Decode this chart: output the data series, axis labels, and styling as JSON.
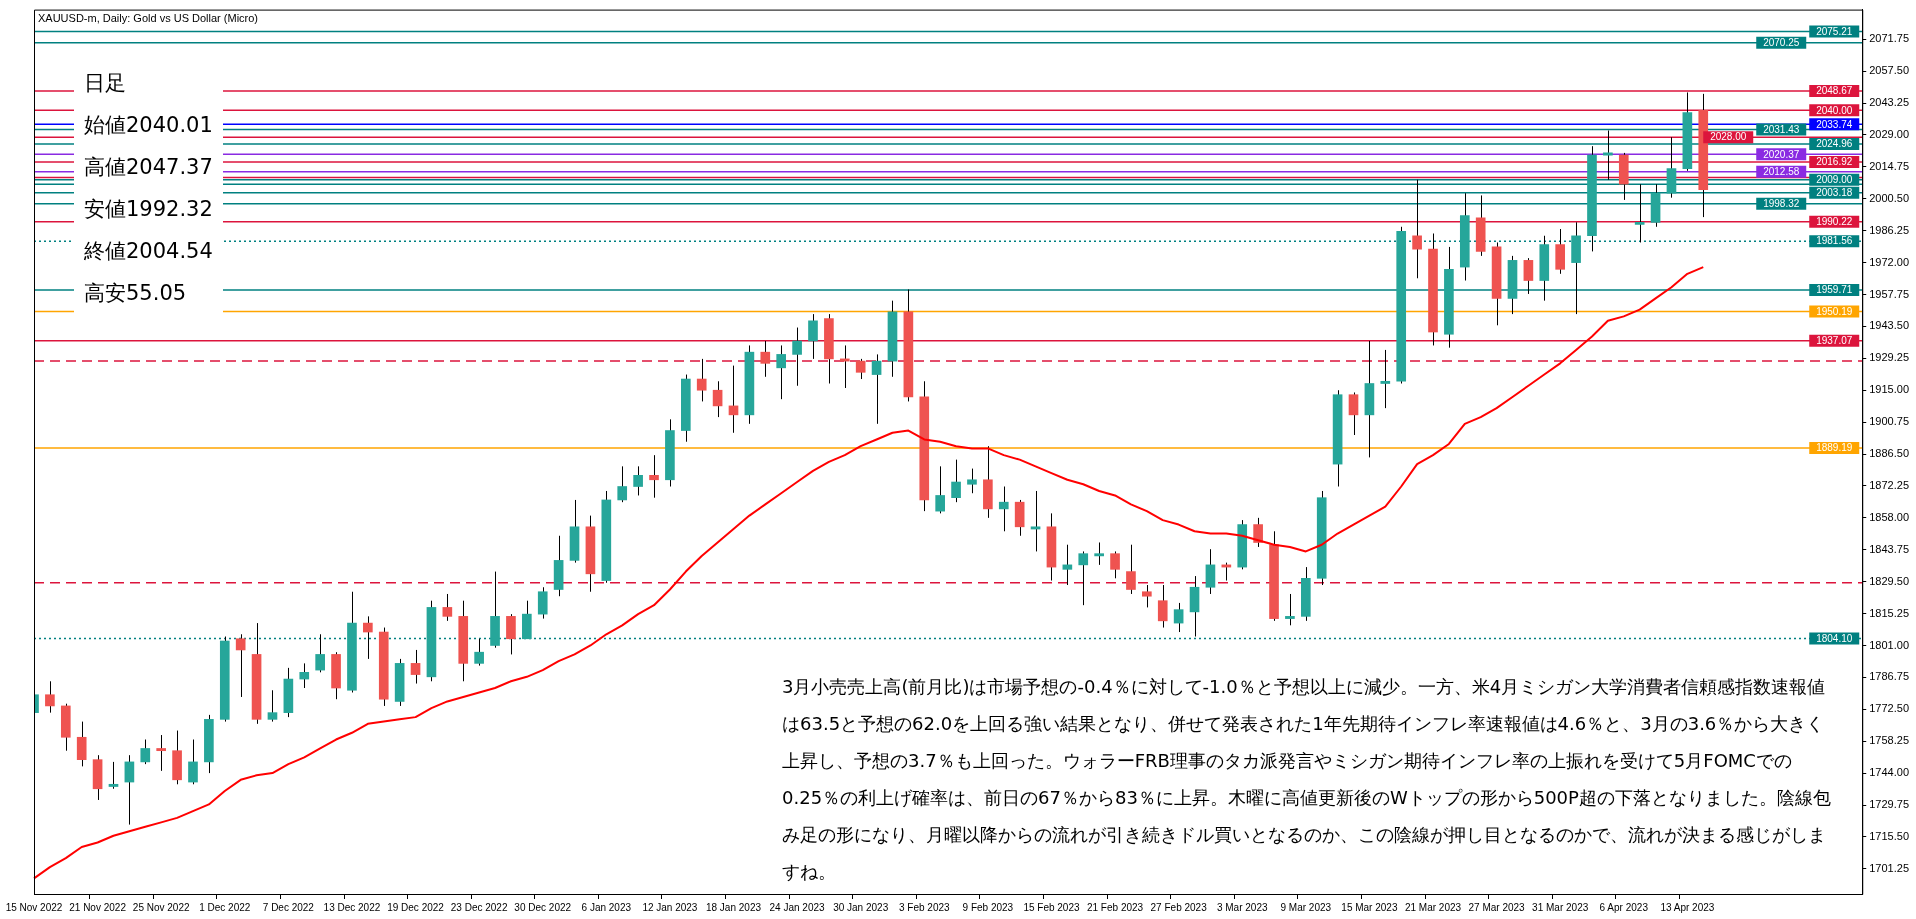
{
  "chart_data": {
    "type": "candlestick",
    "title": "XAUUSD-m, Daily:  Gold vs US Dollar (Micro)",
    "categories": [
      "15 Nov 2022",
      null,
      null,
      null,
      "21 Nov 2022",
      null,
      null,
      null,
      "25 Nov 2022",
      null,
      null,
      null,
      "1 Dec 2022",
      null,
      null,
      null,
      "7 Dec 2022",
      null,
      null,
      null,
      "13 Dec 2022",
      null,
      null,
      null,
      "19 Dec 2022",
      null,
      null,
      null,
      "23 Dec 2022",
      null,
      null,
      null,
      "30 Dec 2022",
      null,
      null,
      null,
      "6 Jan 2023",
      null,
      null,
      null,
      "12 Jan 2023",
      null,
      null,
      null,
      "18 Jan 2023",
      null,
      null,
      null,
      "24 Jan 2023",
      null,
      null,
      null,
      "30 Jan 2023",
      null,
      null,
      null,
      "3 Feb 2023",
      null,
      null,
      null,
      "9 Feb 2023",
      null,
      null,
      null,
      "15 Feb 2023",
      null,
      null,
      null,
      "21 Feb 2023",
      null,
      null,
      null,
      "27 Feb 2023",
      null,
      null,
      null,
      "3 Mar 2023",
      null,
      null,
      null,
      "9 Mar 2023",
      null,
      null,
      null,
      "15 Mar 2023",
      null,
      null,
      null,
      "21 Mar 2023",
      null,
      null,
      null,
      "27 Mar 2023",
      null,
      null,
      null,
      "31 Mar 2023",
      null,
      null,
      null,
      "6 Apr 2023",
      null,
      null,
      null,
      "13 Apr 2023",
      null,
      null,
      null,
      null,
      null,
      null,
      null,
      null,
      null,
      null,
      null
    ],
    "series": [
      {
        "type": "line",
        "color": "#ff0000",
        "values": [
          1697,
          1702,
          1706,
          1711,
          1713,
          1716,
          1718,
          1720,
          1722,
          1724,
          1727,
          1730,
          1736,
          1741,
          1743,
          1744,
          1748,
          1751,
          1755,
          1759,
          1762,
          1766,
          1767,
          1768,
          1769,
          1773,
          1776,
          1778,
          1780,
          1782,
          1785,
          1787,
          1790,
          1794,
          1797,
          1801,
          1806,
          1810,
          1815,
          1819,
          1826,
          1834,
          1841,
          1847,
          1853,
          1859,
          1864,
          1869,
          1874,
          1879,
          1883,
          1886,
          1890,
          1893,
          1896,
          1897,
          1893,
          1892,
          1890,
          1889,
          1889,
          1886,
          1884,
          1881,
          1878,
          1875,
          1873,
          1870,
          1868,
          1864,
          1861,
          1857,
          1855,
          1852,
          1851,
          1851,
          1850,
          1848,
          1846,
          1845,
          1843,
          1846,
          1851,
          1855,
          1859,
          1863,
          1872,
          1882,
          1886,
          1891,
          1900,
          1903,
          1907,
          1912,
          1917,
          1922,
          1927,
          1933,
          1939,
          1946,
          1948,
          1951,
          1956,
          1961,
          1967,
          1970,
          null,
          null,
          null,
          null,
          null,
          null,
          null,
          null,
          null,
          null
        ]
      },
      {
        "ohlc": [
          [
            1771,
            1781,
            1770,
            1779
          ],
          [
            1779,
            1785,
            1771,
            1774
          ],
          [
            1774,
            1775,
            1754,
            1760
          ],
          [
            1760,
            1767,
            1747,
            1750
          ],
          [
            1750,
            1752,
            1732,
            1737
          ],
          [
            1738,
            1749,
            1737,
            1739
          ],
          [
            1740,
            1752,
            1721,
            1749
          ],
          [
            1749,
            1759,
            1748,
            1755
          ],
          [
            1755,
            1761,
            1745,
            1754
          ],
          [
            1754,
            1763,
            1739,
            1741
          ],
          [
            1740,
            1759,
            1739,
            1749
          ],
          [
            1749,
            1770,
            1744,
            1768
          ],
          [
            1768,
            1805,
            1767,
            1803
          ],
          [
            1804,
            1806,
            1778,
            1799
          ],
          [
            1797,
            1811,
            1766,
            1768
          ],
          [
            1768,
            1781,
            1767,
            1771
          ],
          [
            1771,
            1791,
            1769,
            1786
          ],
          [
            1786,
            1793,
            1782,
            1789
          ],
          [
            1790,
            1806,
            1789,
            1797
          ],
          [
            1797,
            1798,
            1777,
            1782
          ],
          [
            1781,
            1825,
            1780,
            1811
          ],
          [
            1811,
            1814,
            1795,
            1807
          ],
          [
            1807,
            1809,
            1774,
            1777
          ],
          [
            1776,
            1795,
            1774,
            1793
          ],
          [
            1793,
            1799,
            1784,
            1788
          ],
          [
            1787,
            1821,
            1785,
            1818
          ],
          [
            1818,
            1824,
            1812,
            1814
          ],
          [
            1814,
            1821,
            1785,
            1793
          ],
          [
            1793,
            1804,
            1792,
            1798
          ],
          [
            1801,
            1834,
            1800,
            1814
          ],
          [
            1814,
            1815,
            1797,
            1804
          ],
          [
            1804,
            1821,
            1804,
            1815
          ],
          [
            1815,
            1827,
            1813,
            1825
          ],
          [
            1826,
            1850,
            1823,
            1839
          ],
          [
            1839,
            1866,
            1838,
            1854
          ],
          [
            1854,
            1859,
            1825,
            1833
          ],
          [
            1830,
            1870,
            1829,
            1866
          ],
          [
            1866,
            1881,
            1865,
            1872
          ],
          [
            1872,
            1881,
            1868,
            1877
          ],
          [
            1877,
            1886,
            1867,
            1875
          ],
          [
            1875,
            1902,
            1872,
            1897
          ],
          [
            1897,
            1922,
            1892,
            1920
          ],
          [
            1920,
            1929,
            1910,
            1915
          ],
          [
            1915,
            1919,
            1903,
            1908
          ],
          [
            1908,
            1926,
            1896,
            1904
          ],
          [
            1904,
            1935,
            1900,
            1932
          ],
          [
            1932,
            1937,
            1921,
            1927
          ],
          [
            1925,
            1935,
            1911,
            1931
          ],
          [
            1931,
            1943,
            1917,
            1937
          ],
          [
            1937,
            1949,
            1929,
            1946
          ],
          [
            1947,
            1949,
            1918,
            1929
          ],
          [
            1929,
            1935,
            1916,
            1928
          ],
          [
            1928,
            1929,
            1920,
            1923
          ],
          [
            1922,
            1931,
            1900,
            1928
          ],
          [
            1928,
            1955,
            1921,
            1950
          ],
          [
            1950,
            1960,
            1910,
            1912
          ],
          [
            1912,
            1919,
            1861,
            1866
          ],
          [
            1861,
            1881,
            1860,
            1868
          ],
          [
            1867,
            1884,
            1865,
            1874
          ],
          [
            1873,
            1880,
            1869,
            1875
          ],
          [
            1875,
            1890,
            1858,
            1862
          ],
          [
            1862,
            1872,
            1852,
            1865
          ],
          [
            1865,
            1866,
            1850,
            1854
          ],
          [
            1853,
            1870,
            1843,
            1854
          ],
          [
            1854,
            1860,
            1830,
            1836
          ],
          [
            1835,
            1846,
            1828,
            1837
          ],
          [
            1837,
            1843,
            1819,
            1842
          ],
          [
            1841,
            1847,
            1837,
            1842
          ],
          [
            1842,
            1843,
            1831,
            1835
          ],
          [
            1834,
            1846,
            1824,
            1826
          ],
          [
            1825,
            1828,
            1818,
            1823
          ],
          [
            1821,
            1828,
            1809,
            1812
          ],
          [
            1811,
            1820,
            1807,
            1817
          ],
          [
            1816,
            1832,
            1805,
            1827
          ],
          [
            1827,
            1844,
            1824,
            1837
          ],
          [
            1837,
            1838,
            1830,
            1836
          ],
          [
            1836,
            1857,
            1835,
            1855
          ],
          [
            1855,
            1858,
            1845,
            1847
          ],
          [
            1846,
            1852,
            1812,
            1813
          ],
          [
            1813,
            1824,
            1810,
            1814
          ],
          [
            1814,
            1836,
            1812,
            1831
          ],
          [
            1831,
            1870,
            1828,
            1867
          ],
          [
            1882,
            1915,
            1872,
            1913
          ],
          [
            1913,
            1914,
            1895,
            1904
          ],
          [
            1904,
            1937,
            1885,
            1918
          ],
          [
            1918,
            1933,
            1907,
            1919
          ],
          [
            1919,
            1988,
            1918,
            1986
          ],
          [
            1984,
            2009,
            1965,
            1978
          ],
          [
            1978,
            1985,
            1935,
            1941
          ],
          [
            1940,
            1979,
            1934,
            1969
          ],
          [
            1970,
            2003,
            1964,
            1993
          ],
          [
            1992,
            2002,
            1975,
            1977
          ],
          [
            1979,
            1981,
            1944,
            1956
          ],
          [
            1956,
            1975,
            1949,
            1973
          ],
          [
            1973,
            1974,
            1958,
            1964
          ],
          [
            1964,
            1984,
            1955,
            1980
          ],
          [
            1980,
            1987,
            1967,
            1969
          ],
          [
            1972,
            1990,
            1949,
            1984
          ],
          [
            1984,
            2024,
            1977,
            2020
          ],
          [
            2020,
            2031,
            2009,
            2021
          ],
          [
            2020,
            2021,
            2000,
            2007
          ],
          [
            1989,
            2007,
            1981,
            1990
          ],
          [
            1990,
            2007,
            1988,
            2003
          ],
          [
            2003,
            2028,
            2001,
            2014
          ],
          [
            2014,
            2048,
            2013,
            2039
          ],
          [
            2040.01,
            2047.37,
            1992.32,
            2004.54
          ],
          null,
          null,
          null,
          null,
          null,
          null,
          null,
          null,
          null,
          null
        ],
        "colors": [
          "#26a69a",
          "#ef5350",
          "#ef5350",
          "#ef5350",
          "#ef5350",
          "#26a69a",
          "#26a69a",
          "#26a69a",
          "#ef5350",
          "#ef5350",
          "#26a69a",
          "#26a69a",
          "#26a69a",
          "#ef5350",
          "#ef5350",
          "#26a69a",
          "#26a69a",
          "#26a69a",
          "#26a69a",
          "#ef5350",
          "#26a69a",
          "#ef5350",
          "#ef5350",
          "#26a69a",
          "#ef5350",
          "#26a69a",
          "#ef5350",
          "#ef5350",
          "#26a69a",
          "#26a69a",
          "#ef5350",
          "#26a69a",
          "#26a69a",
          "#26a69a",
          "#26a69a",
          "#ef5350",
          "#26a69a",
          "#26a69a",
          "#26a69a",
          "#ef5350",
          "#26a69a",
          "#26a69a",
          "#ef5350",
          "#ef5350",
          "#ef5350",
          "#26a69a",
          "#ef5350",
          "#26a69a",
          "#26a69a",
          "#26a69a",
          "#ef5350",
          "#ef5350",
          "#ef5350",
          "#26a69a",
          "#26a69a",
          "#ef5350",
          "#ef5350",
          "#26a69a",
          "#26a69a",
          "#26a69a",
          "#ef5350",
          "#26a69a",
          "#ef5350",
          "#26a69a",
          "#ef5350",
          "#26a69a",
          "#26a69a",
          "#26a69a",
          "#ef5350",
          "#ef5350",
          "#ef5350",
          "#ef5350",
          "#26a69a",
          "#26a69a",
          "#26a69a",
          "#ef5350",
          "#26a69a",
          "#ef5350",
          "#ef5350",
          "#26a69a",
          "#26a69a",
          "#26a69a",
          "#26a69a",
          "#ef5350",
          "#26a69a",
          "#26a69a",
          "#26a69a",
          "#ef5350",
          "#ef5350",
          "#26a69a",
          "#26a69a",
          "#ef5350",
          "#ef5350",
          "#26a69a",
          "#ef5350",
          "#26a69a",
          "#ef5350",
          "#26a69a",
          "#26a69a",
          "#26a69a",
          "#ef5350",
          "#26a69a",
          "#26a69a",
          "#26a69a",
          "#26a69a",
          "#ef5350",
          null,
          null,
          null,
          null,
          null,
          null,
          null,
          null,
          null,
          null
        ]
      }
    ],
    "ylim": [
      1690,
      2085
    ],
    "yticks": [
      1701.25,
      {
        "value": 1715.5,
        "label": "1715.50"
      },
      1729.75,
      {
        "value": 1744,
        "label": "1744.00"
      },
      1758.25,
      {
        "value": 1772.5,
        "label": "1772.50"
      },
      1786.75,
      {
        "value": 1801,
        "label": "1801.00"
      },
      1815.25,
      {
        "value": 1829.5,
        "label": "1829.50"
      },
      1843.75,
      {
        "value": 1858,
        "label": "1858.00"
      },
      1872.25,
      {
        "value": 1886.5,
        "label": "1886.50"
      },
      1900.75,
      {
        "value": 1915,
        "label": "1915.00"
      },
      1929.25,
      {
        "value": 1943.5,
        "label": "1943.50"
      },
      1957.75,
      {
        "value": 1972,
        "label": "1972.00"
      },
      1986.25,
      {
        "value": 2000.5,
        "label": "2000.50"
      },
      2014.75,
      {
        "value": 2029,
        "label": "2029.00"
      },
      2043.25,
      {
        "value": 2057.5,
        "label": "2057.50"
      },
      2071.75
    ],
    "ref_lines": [
      {
        "axis": "y",
        "value": 2075.21,
        "label": "2075.21",
        "color": "#008080"
      },
      {
        "axis": "y",
        "value": 2070.25,
        "label": "2070.25",
        "color": "#008080"
      },
      {
        "axis": "y",
        "value": 2048.67,
        "label": "2048.67",
        "color": "#dc143c"
      },
      {
        "axis": "y",
        "value": 2040,
        "label": "2040.00",
        "color": "#dc143c"
      },
      {
        "axis": "y",
        "value": 2033.74,
        "label": "2033.74",
        "color": "#0000ff"
      },
      {
        "axis": "y",
        "value": 2031.43,
        "label": "2031.43",
        "color": "#008080"
      },
      {
        "axis": "y",
        "value": 2028,
        "label": "2028.00",
        "color": "#dc143c"
      },
      {
        "axis": "y",
        "value": 2024.96,
        "label": "2024.96",
        "color": "#008080"
      },
      {
        "axis": "y",
        "value": 2020.37,
        "label": "2020.37",
        "color": "#8a2be2"
      },
      {
        "axis": "y",
        "value": 2016.92,
        "label": "2016.92",
        "color": "#dc143c"
      },
      {
        "axis": "y",
        "value": 2012.58,
        "label": "2012.58",
        "color": "#8a2be2"
      },
      {
        "axis": "y",
        "value": 2010,
        "color": "#dc143c"
      },
      {
        "axis": "y",
        "value": 2009,
        "label": "2009.00",
        "color": "#008080"
      },
      {
        "axis": "y",
        "value": 2007,
        "color": "#008080"
      },
      {
        "axis": "y",
        "value": 2003.18,
        "label": "2003.18",
        "color": "#008080"
      },
      {
        "axis": "y",
        "value": 1998.32,
        "label": "1998.32",
        "color": "#008080"
      },
      {
        "axis": "y",
        "value": 1990.22,
        "label": "1990.22",
        "color": "#dc143c"
      },
      {
        "axis": "y",
        "value": 1981.56,
        "label": "1981.56",
        "color": "#008080",
        "line_style": "dotted"
      },
      {
        "axis": "y",
        "value": 1959.71,
        "label": "1959.71",
        "color": "#008080"
      },
      {
        "axis": "y",
        "value": 1950.19,
        "label": "1950.19",
        "color": "#ffa500"
      },
      {
        "axis": "y",
        "value": 1937.07,
        "label": "1937.07",
        "color": "#dc143c"
      },
      {
        "axis": "y",
        "value": 1928,
        "color": "#dc143c",
        "line_style": "dashed"
      },
      {
        "axis": "y",
        "value": 1889.19,
        "label": "1889.19",
        "color": "#ffa500"
      },
      {
        "axis": "y",
        "value": 1829,
        "color": "#dc143c",
        "line_style": "dashed"
      },
      {
        "axis": "y",
        "value": 1804.1,
        "label": "1804.10",
        "color": "#008080",
        "line_style": "dotted"
      }
    ],
    "annotations": [
      "日足",
      "始値2040.01",
      "高値2047.37",
      "安値1992.32",
      "終値2004.54",
      "高安55.05",
      "3月小売売上高(前月比)は市場予想の-0.4％に対して-1.0％と予想以上に減少。一方、米4月ミシガン大学消費者信頼感指数速報値は63.5と予想の62.0を上回る強い結果となり、併せて発表された1年先期待インフレ率速報値は4.6％と、3月の3.6％から大きく上昇し、予想の3.7％も上回った。ウォラーFRB理事のタカ派発言やミシガン期待インフレ率の上振れを受けて5月FOMCでの0.25％の利上げ確率は、前日の67％から83％に上昇。木曜に高値更新後のWトップの形から500P超の下落となりました。陰線包み足の形になり、月曜以降からの流れが引き続きドル買いとなるのか、この陰線が押し目となるのかで、流れが決まる感じがしますね。"
    ]
  }
}
